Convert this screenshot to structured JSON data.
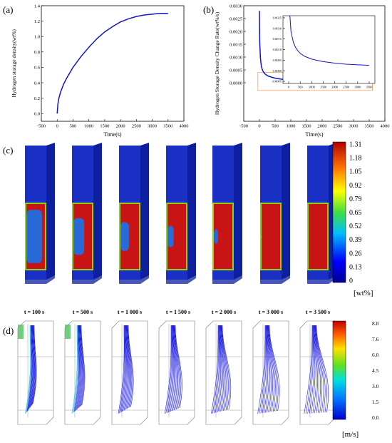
{
  "panels": {
    "a": "(a)",
    "b": "(b)",
    "c": "(c)",
    "d": "(d)"
  },
  "chart_data": [
    {
      "id": "a",
      "type": "line",
      "title": "",
      "xlabel": "Time(s)",
      "ylabel": "Hydrogen storage density(wt%)",
      "xlim": [
        -500,
        4000
      ],
      "ylim": [
        -0.1,
        1.4
      ],
      "xticks": [
        -500,
        0,
        500,
        1000,
        1500,
        2000,
        2500,
        3000,
        3500,
        4000
      ],
      "yticks": [
        0.0,
        0.2,
        0.4,
        0.6,
        0.8,
        1.0,
        1.2,
        1.4
      ],
      "ytick_labels": [
        "0.0",
        "0.2",
        "0.4",
        "0.6",
        "0.8",
        "1.0",
        "1.2",
        "1.4"
      ],
      "grid": false,
      "color": "#1515c8",
      "x": [
        0,
        25,
        50,
        100,
        200,
        300,
        400,
        500,
        750,
        1000,
        1250,
        1500,
        1750,
        2000,
        2250,
        2500,
        2750,
        3000,
        3250,
        3500
      ],
      "y": [
        0.0,
        0.13,
        0.19,
        0.27,
        0.38,
        0.46,
        0.53,
        0.6,
        0.74,
        0.86,
        0.97,
        1.06,
        1.13,
        1.19,
        1.23,
        1.26,
        1.28,
        1.29,
        1.3,
        1.3
      ]
    },
    {
      "id": "b",
      "type": "line",
      "title": "",
      "xlabel": "Time(s)",
      "ylabel": "Hydrogen Storage Density Change Rate(wt%/s)",
      "xlim": [
        -500,
        4000
      ],
      "ylim": [
        -0.0015,
        0.003
      ],
      "xticks": [
        -500,
        0,
        500,
        1000,
        1500,
        2000,
        2500,
        3000,
        3500,
        4000
      ],
      "yticks": [
        0.0,
        0.0005,
        0.001,
        0.0015,
        0.002,
        0.0025,
        0.003
      ],
      "ytick_labels": [
        "0.0000",
        "0.0005",
        "0.0010",
        "0.0015",
        "0.0020",
        "0.0025",
        "0.0030"
      ],
      "grid": false,
      "color": "#1515c8",
      "x": [
        0,
        10,
        30,
        60,
        100,
        150,
        200,
        300,
        400,
        500,
        700,
        1000,
        1500,
        2000,
        2500,
        3000,
        3500
      ],
      "y": [
        0.0028,
        0.0016,
        0.001,
        0.00065,
        0.00048,
        0.00038,
        0.00032,
        0.00025,
        0.00021,
        0.00018,
        0.00014,
        0.00011,
        8e-05,
        6e-05,
        4e-05,
        3e-05,
        2e-05
      ],
      "highlight_box": {
        "x": [
          -50,
          3600
        ],
        "y": [
          -0.0003,
          0.0004
        ]
      },
      "inset": {
        "xlim": [
          -250,
          3750
        ],
        "ylim": [
          -0.0006,
          0.0026
        ],
        "xticks": [
          0,
          500,
          1000,
          1500,
          2000,
          2500,
          3000,
          3500
        ],
        "yticks": [
          -0.0005,
          0.0,
          0.0005,
          0.001,
          0.0015,
          0.002,
          0.0025
        ],
        "ytick_labels": [
          "-0.0005",
          "0.0000",
          "0.0005",
          "0.0010",
          "0.0015",
          "0.0020",
          "0.0025"
        ],
        "x": [
          50,
          100,
          200,
          300,
          400,
          500,
          700,
          1000,
          1500,
          2000,
          2500,
          3000,
          3500
        ],
        "y": [
          0.0026,
          0.00185,
          0.00135,
          0.0011,
          0.00094,
          0.00082,
          0.00068,
          0.00055,
          0.00043,
          0.00036,
          0.00031,
          0.00028,
          0.00026
        ]
      }
    }
  ],
  "colorbar_c": {
    "ticks": [
      "1.31",
      "1.18",
      "1.05",
      "0.92",
      "0.79",
      "0.65",
      "0.52",
      "0.39",
      "0.26",
      "0.13",
      "0"
    ],
    "unit": "[wt%]"
  },
  "colorbar_d": {
    "ticks": [
      "8.8",
      "7.6",
      "6.0",
      "4.5",
      "3.0",
      "1.5",
      "0.0"
    ],
    "unit": "[m/s]"
  },
  "time_labels": [
    "t = 100 s",
    "t = 500 s",
    "t = 1 000 s",
    "t = 1 500 s",
    "t = 2 000 s",
    "t = 3 000 s",
    "t = 3 500 s"
  ],
  "fill_fraction": [
    0.45,
    0.62,
    0.7,
    0.78,
    0.85,
    0.97,
    1.0
  ],
  "colors": {
    "line": "#1515c8",
    "tank": "#1a2fc4",
    "tank_side": "#0d1f9e",
    "full": "#c81414",
    "front": "#8fd21a",
    "box": "#f0a060"
  }
}
